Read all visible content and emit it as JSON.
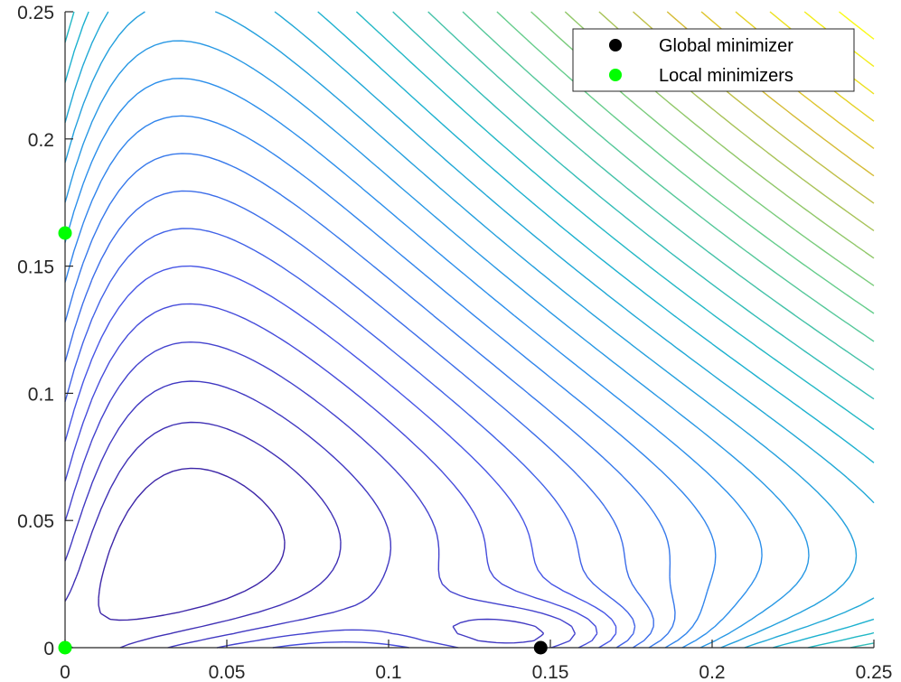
{
  "chart_data": {
    "type": "contour",
    "xlim": [
      0,
      0.25
    ],
    "ylim": [
      0,
      0.25
    ],
    "x_ticks": [
      0,
      0.05,
      0.1,
      0.15,
      0.2,
      0.25
    ],
    "x_tick_labels": [
      "0",
      "0.05",
      "0.1",
      "0.15",
      "0.2",
      "0.25"
    ],
    "y_ticks": [
      0,
      0.05,
      0.1,
      0.15,
      0.2,
      0.25
    ],
    "y_tick_labels": [
      "0",
      "0.05",
      "0.1",
      "0.15",
      "0.2",
      "0.25"
    ],
    "grid": false,
    "colormap": "parula",
    "contour_levels": 30,
    "legend": {
      "location": "top-right",
      "entries": [
        {
          "label": "Global minimizer",
          "color": "#000000"
        },
        {
          "label": "Local minimizers",
          "color": "#00ff00"
        }
      ]
    },
    "series": [
      {
        "name": "Global minimizer",
        "color": "#000000",
        "points": [
          {
            "x": 0.147,
            "y": 0
          }
        ]
      },
      {
        "name": "Local minimizers",
        "color": "#00ff00",
        "points": [
          {
            "x": 0,
            "y": 0.163
          },
          {
            "x": 0,
            "y": 0
          }
        ]
      }
    ]
  }
}
